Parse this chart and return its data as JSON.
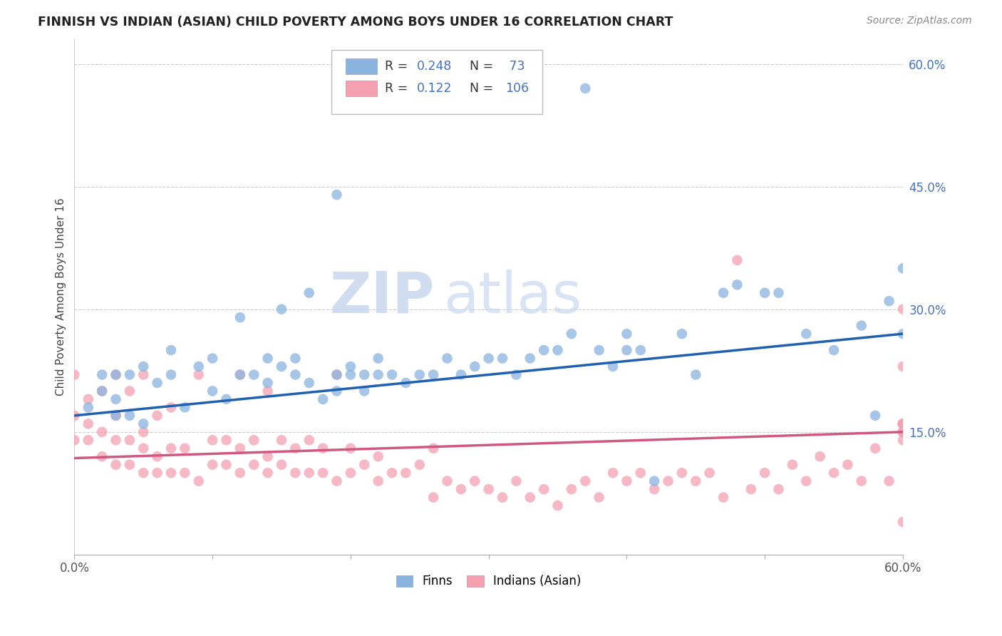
{
  "title": "FINNISH VS INDIAN (ASIAN) CHILD POVERTY AMONG BOYS UNDER 16 CORRELATION CHART",
  "source": "Source: ZipAtlas.com",
  "ylabel": "Child Poverty Among Boys Under 16",
  "xlim": [
    0.0,
    0.6
  ],
  "ylim": [
    0.0,
    0.63
  ],
  "ytick_right_labels": [
    "60.0%",
    "45.0%",
    "30.0%",
    "15.0%"
  ],
  "ytick_right_values": [
    0.6,
    0.45,
    0.3,
    0.15
  ],
  "finns_R": "0.248",
  "finns_N": "73",
  "indians_R": "0.122",
  "indians_N": "106",
  "blue_color": "#8ab4e0",
  "pink_color": "#f4a0b0",
  "blue_line_color": "#2060b0",
  "pink_line_color": "#d05880",
  "watermark_zip": "ZIP",
  "watermark_atlas": "atlas",
  "finns_line_start": 0.17,
  "finns_line_end": 0.27,
  "indians_line_start": 0.118,
  "indians_line_end": 0.15,
  "finns_x": [
    0.01,
    0.02,
    0.02,
    0.03,
    0.03,
    0.03,
    0.04,
    0.04,
    0.05,
    0.05,
    0.06,
    0.07,
    0.07,
    0.08,
    0.09,
    0.1,
    0.1,
    0.11,
    0.12,
    0.12,
    0.13,
    0.14,
    0.14,
    0.15,
    0.15,
    0.16,
    0.16,
    0.17,
    0.17,
    0.18,
    0.19,
    0.19,
    0.2,
    0.2,
    0.21,
    0.21,
    0.22,
    0.22,
    0.23,
    0.24,
    0.25,
    0.26,
    0.27,
    0.28,
    0.29,
    0.3,
    0.31,
    0.32,
    0.33,
    0.34,
    0.35,
    0.36,
    0.37,
    0.38,
    0.39,
    0.4,
    0.41,
    0.42,
    0.44,
    0.45,
    0.47,
    0.48,
    0.5,
    0.51,
    0.53,
    0.55,
    0.57,
    0.58,
    0.59,
    0.6,
    0.6,
    0.19,
    0.4
  ],
  "finns_y": [
    0.18,
    0.2,
    0.22,
    0.17,
    0.19,
    0.22,
    0.17,
    0.22,
    0.16,
    0.23,
    0.21,
    0.22,
    0.25,
    0.18,
    0.23,
    0.2,
    0.24,
    0.19,
    0.22,
    0.29,
    0.22,
    0.21,
    0.24,
    0.23,
    0.3,
    0.22,
    0.24,
    0.21,
    0.32,
    0.19,
    0.2,
    0.22,
    0.23,
    0.22,
    0.2,
    0.22,
    0.22,
    0.24,
    0.22,
    0.21,
    0.22,
    0.22,
    0.24,
    0.22,
    0.23,
    0.24,
    0.24,
    0.22,
    0.24,
    0.25,
    0.25,
    0.27,
    0.57,
    0.25,
    0.23,
    0.25,
    0.25,
    0.09,
    0.27,
    0.22,
    0.32,
    0.33,
    0.32,
    0.32,
    0.27,
    0.25,
    0.28,
    0.17,
    0.31,
    0.27,
    0.35,
    0.44,
    0.27
  ],
  "indians_x": [
    0.0,
    0.0,
    0.0,
    0.01,
    0.01,
    0.01,
    0.02,
    0.02,
    0.02,
    0.03,
    0.03,
    0.03,
    0.03,
    0.04,
    0.04,
    0.04,
    0.05,
    0.05,
    0.05,
    0.05,
    0.06,
    0.06,
    0.06,
    0.07,
    0.07,
    0.07,
    0.08,
    0.08,
    0.09,
    0.09,
    0.1,
    0.1,
    0.11,
    0.11,
    0.12,
    0.12,
    0.12,
    0.13,
    0.13,
    0.14,
    0.14,
    0.14,
    0.15,
    0.15,
    0.16,
    0.16,
    0.17,
    0.17,
    0.18,
    0.18,
    0.19,
    0.19,
    0.2,
    0.2,
    0.21,
    0.22,
    0.22,
    0.23,
    0.24,
    0.25,
    0.26,
    0.26,
    0.27,
    0.28,
    0.29,
    0.3,
    0.31,
    0.32,
    0.33,
    0.34,
    0.35,
    0.36,
    0.37,
    0.38,
    0.39,
    0.4,
    0.41,
    0.42,
    0.43,
    0.44,
    0.45,
    0.46,
    0.47,
    0.48,
    0.49,
    0.5,
    0.51,
    0.52,
    0.53,
    0.54,
    0.55,
    0.56,
    0.57,
    0.58,
    0.59,
    0.6,
    0.6,
    0.6,
    0.6,
    0.6,
    0.6,
    0.6,
    0.6,
    0.6,
    0.6,
    0.6
  ],
  "indians_y": [
    0.17,
    0.14,
    0.22,
    0.14,
    0.16,
    0.19,
    0.12,
    0.15,
    0.2,
    0.11,
    0.14,
    0.17,
    0.22,
    0.11,
    0.14,
    0.2,
    0.1,
    0.13,
    0.15,
    0.22,
    0.1,
    0.12,
    0.17,
    0.1,
    0.13,
    0.18,
    0.1,
    0.13,
    0.09,
    0.22,
    0.11,
    0.14,
    0.11,
    0.14,
    0.1,
    0.13,
    0.22,
    0.11,
    0.14,
    0.1,
    0.12,
    0.2,
    0.11,
    0.14,
    0.1,
    0.13,
    0.1,
    0.14,
    0.1,
    0.13,
    0.09,
    0.22,
    0.1,
    0.13,
    0.11,
    0.09,
    0.12,
    0.1,
    0.1,
    0.11,
    0.07,
    0.13,
    0.09,
    0.08,
    0.09,
    0.08,
    0.07,
    0.09,
    0.07,
    0.08,
    0.06,
    0.08,
    0.09,
    0.07,
    0.1,
    0.09,
    0.1,
    0.08,
    0.09,
    0.1,
    0.09,
    0.1,
    0.07,
    0.36,
    0.08,
    0.1,
    0.08,
    0.11,
    0.09,
    0.12,
    0.1,
    0.11,
    0.09,
    0.13,
    0.09,
    0.04,
    0.15,
    0.16,
    0.14,
    0.16,
    0.15,
    0.23,
    0.16,
    0.15,
    0.16,
    0.3
  ]
}
